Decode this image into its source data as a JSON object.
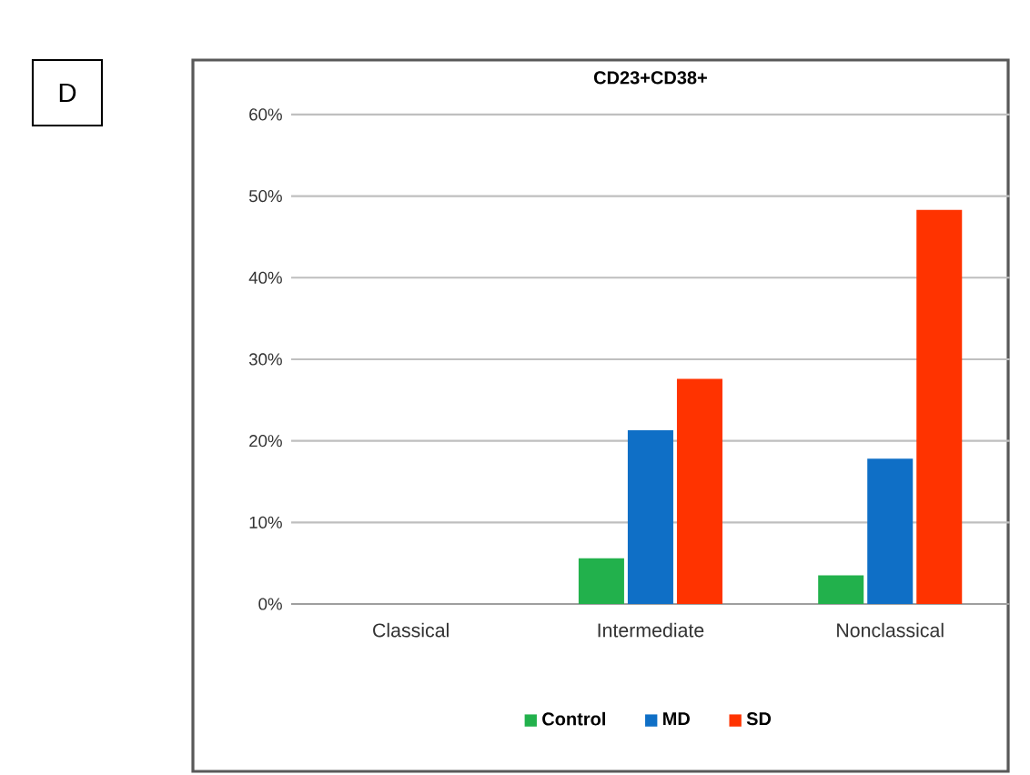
{
  "chart_data": {
    "type": "bar",
    "title": "CD23+CD38+",
    "categories": [
      "Classical",
      "Intermediate",
      "Nonclassical"
    ],
    "series": [
      {
        "name": "Control",
        "color": "#22b14c",
        "values": [
          0,
          5.6,
          3.5
        ]
      },
      {
        "name": "MD",
        "color": "#0f6fc6",
        "values": [
          0,
          21.3,
          17.8
        ]
      },
      {
        "name": "SD",
        "color": "#ff3300",
        "values": [
          0,
          27.6,
          48.3
        ]
      }
    ],
    "ylim": [
      0,
      60
    ],
    "yticks": [
      {
        "value": 0,
        "label": "0%"
      },
      {
        "value": 10,
        "label": "10%"
      },
      {
        "value": 20,
        "label": "20%"
      },
      {
        "value": 30,
        "label": "30%"
      },
      {
        "value": 40,
        "label": "40%"
      },
      {
        "value": 50,
        "label": "50%"
      },
      {
        "value": 60,
        "label": "60%"
      }
    ],
    "grid": "y",
    "legend": "bottom",
    "annotations": [
      "D"
    ]
  }
}
